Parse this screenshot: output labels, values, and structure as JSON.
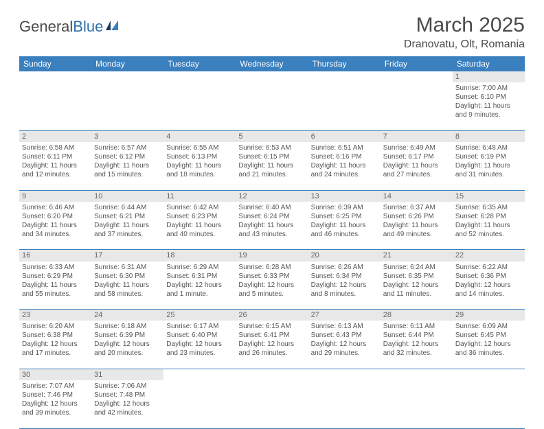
{
  "logo": {
    "text1": "General",
    "text2": "Blue"
  },
  "title": "March 2025",
  "location": "Dranovatu, Olt, Romania",
  "colors": {
    "header_bg": "#3a7fbe",
    "header_text": "#ffffff",
    "daynum_bg": "#e8e8e8",
    "border": "#3a7fbe",
    "text": "#555555"
  },
  "dayHeaders": [
    "Sunday",
    "Monday",
    "Tuesday",
    "Wednesday",
    "Thursday",
    "Friday",
    "Saturday"
  ],
  "weeks": [
    [
      null,
      null,
      null,
      null,
      null,
      null,
      {
        "n": "1",
        "sr": "Sunrise: 7:00 AM",
        "ss": "Sunset: 6:10 PM",
        "d1": "Daylight: 11 hours",
        "d2": "and 9 minutes."
      }
    ],
    [
      {
        "n": "2",
        "sr": "Sunrise: 6:58 AM",
        "ss": "Sunset: 6:11 PM",
        "d1": "Daylight: 11 hours",
        "d2": "and 12 minutes."
      },
      {
        "n": "3",
        "sr": "Sunrise: 6:57 AM",
        "ss": "Sunset: 6:12 PM",
        "d1": "Daylight: 11 hours",
        "d2": "and 15 minutes."
      },
      {
        "n": "4",
        "sr": "Sunrise: 6:55 AM",
        "ss": "Sunset: 6:13 PM",
        "d1": "Daylight: 11 hours",
        "d2": "and 18 minutes."
      },
      {
        "n": "5",
        "sr": "Sunrise: 6:53 AM",
        "ss": "Sunset: 6:15 PM",
        "d1": "Daylight: 11 hours",
        "d2": "and 21 minutes."
      },
      {
        "n": "6",
        "sr": "Sunrise: 6:51 AM",
        "ss": "Sunset: 6:16 PM",
        "d1": "Daylight: 11 hours",
        "d2": "and 24 minutes."
      },
      {
        "n": "7",
        "sr": "Sunrise: 6:49 AM",
        "ss": "Sunset: 6:17 PM",
        "d1": "Daylight: 11 hours",
        "d2": "and 27 minutes."
      },
      {
        "n": "8",
        "sr": "Sunrise: 6:48 AM",
        "ss": "Sunset: 6:19 PM",
        "d1": "Daylight: 11 hours",
        "d2": "and 31 minutes."
      }
    ],
    [
      {
        "n": "9",
        "sr": "Sunrise: 6:46 AM",
        "ss": "Sunset: 6:20 PM",
        "d1": "Daylight: 11 hours",
        "d2": "and 34 minutes."
      },
      {
        "n": "10",
        "sr": "Sunrise: 6:44 AM",
        "ss": "Sunset: 6:21 PM",
        "d1": "Daylight: 11 hours",
        "d2": "and 37 minutes."
      },
      {
        "n": "11",
        "sr": "Sunrise: 6:42 AM",
        "ss": "Sunset: 6:23 PM",
        "d1": "Daylight: 11 hours",
        "d2": "and 40 minutes."
      },
      {
        "n": "12",
        "sr": "Sunrise: 6:40 AM",
        "ss": "Sunset: 6:24 PM",
        "d1": "Daylight: 11 hours",
        "d2": "and 43 minutes."
      },
      {
        "n": "13",
        "sr": "Sunrise: 6:39 AM",
        "ss": "Sunset: 6:25 PM",
        "d1": "Daylight: 11 hours",
        "d2": "and 46 minutes."
      },
      {
        "n": "14",
        "sr": "Sunrise: 6:37 AM",
        "ss": "Sunset: 6:26 PM",
        "d1": "Daylight: 11 hours",
        "d2": "and 49 minutes."
      },
      {
        "n": "15",
        "sr": "Sunrise: 6:35 AM",
        "ss": "Sunset: 6:28 PM",
        "d1": "Daylight: 11 hours",
        "d2": "and 52 minutes."
      }
    ],
    [
      {
        "n": "16",
        "sr": "Sunrise: 6:33 AM",
        "ss": "Sunset: 6:29 PM",
        "d1": "Daylight: 11 hours",
        "d2": "and 55 minutes."
      },
      {
        "n": "17",
        "sr": "Sunrise: 6:31 AM",
        "ss": "Sunset: 6:30 PM",
        "d1": "Daylight: 11 hours",
        "d2": "and 58 minutes."
      },
      {
        "n": "18",
        "sr": "Sunrise: 6:29 AM",
        "ss": "Sunset: 6:31 PM",
        "d1": "Daylight: 12 hours",
        "d2": "and 1 minute."
      },
      {
        "n": "19",
        "sr": "Sunrise: 6:28 AM",
        "ss": "Sunset: 6:33 PM",
        "d1": "Daylight: 12 hours",
        "d2": "and 5 minutes."
      },
      {
        "n": "20",
        "sr": "Sunrise: 6:26 AM",
        "ss": "Sunset: 6:34 PM",
        "d1": "Daylight: 12 hours",
        "d2": "and 8 minutes."
      },
      {
        "n": "21",
        "sr": "Sunrise: 6:24 AM",
        "ss": "Sunset: 6:35 PM",
        "d1": "Daylight: 12 hours",
        "d2": "and 11 minutes."
      },
      {
        "n": "22",
        "sr": "Sunrise: 6:22 AM",
        "ss": "Sunset: 6:36 PM",
        "d1": "Daylight: 12 hours",
        "d2": "and 14 minutes."
      }
    ],
    [
      {
        "n": "23",
        "sr": "Sunrise: 6:20 AM",
        "ss": "Sunset: 6:38 PM",
        "d1": "Daylight: 12 hours",
        "d2": "and 17 minutes."
      },
      {
        "n": "24",
        "sr": "Sunrise: 6:18 AM",
        "ss": "Sunset: 6:39 PM",
        "d1": "Daylight: 12 hours",
        "d2": "and 20 minutes."
      },
      {
        "n": "25",
        "sr": "Sunrise: 6:17 AM",
        "ss": "Sunset: 6:40 PM",
        "d1": "Daylight: 12 hours",
        "d2": "and 23 minutes."
      },
      {
        "n": "26",
        "sr": "Sunrise: 6:15 AM",
        "ss": "Sunset: 6:41 PM",
        "d1": "Daylight: 12 hours",
        "d2": "and 26 minutes."
      },
      {
        "n": "27",
        "sr": "Sunrise: 6:13 AM",
        "ss": "Sunset: 6:43 PM",
        "d1": "Daylight: 12 hours",
        "d2": "and 29 minutes."
      },
      {
        "n": "28",
        "sr": "Sunrise: 6:11 AM",
        "ss": "Sunset: 6:44 PM",
        "d1": "Daylight: 12 hours",
        "d2": "and 32 minutes."
      },
      {
        "n": "29",
        "sr": "Sunrise: 6:09 AM",
        "ss": "Sunset: 6:45 PM",
        "d1": "Daylight: 12 hours",
        "d2": "and 36 minutes."
      }
    ],
    [
      {
        "n": "30",
        "sr": "Sunrise: 7:07 AM",
        "ss": "Sunset: 7:46 PM",
        "d1": "Daylight: 12 hours",
        "d2": "and 39 minutes."
      },
      {
        "n": "31",
        "sr": "Sunrise: 7:06 AM",
        "ss": "Sunset: 7:48 PM",
        "d1": "Daylight: 12 hours",
        "d2": "and 42 minutes."
      },
      null,
      null,
      null,
      null,
      null
    ]
  ]
}
